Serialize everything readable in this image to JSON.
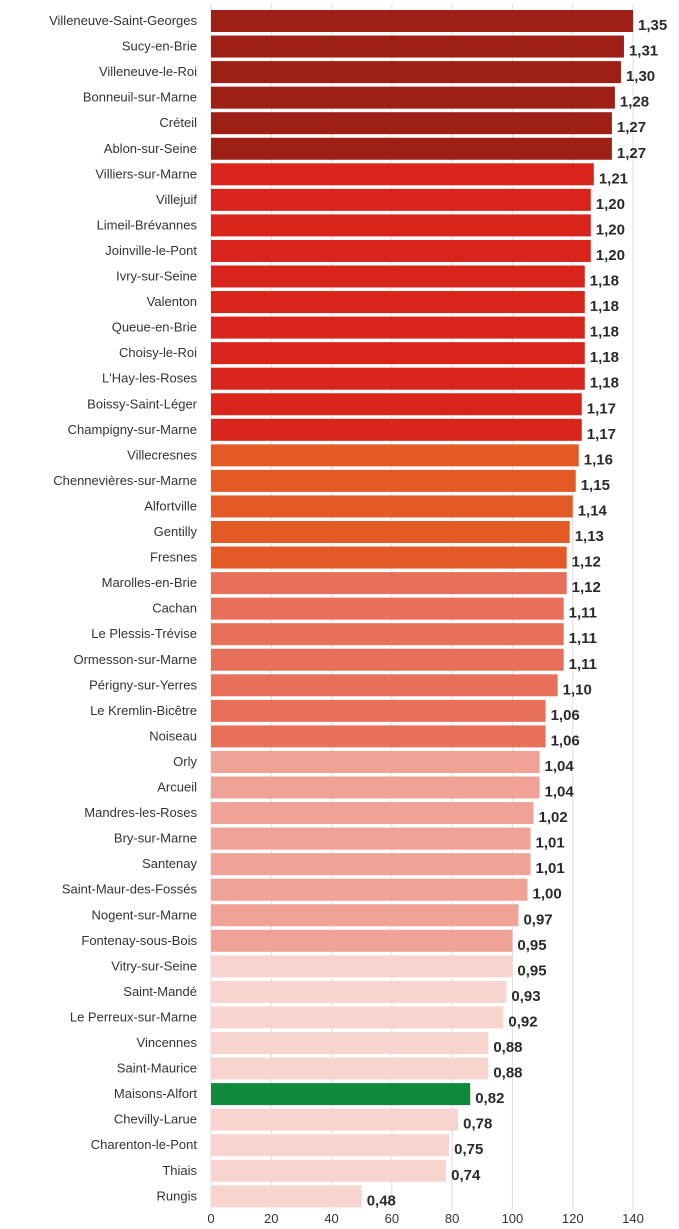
{
  "chart_data": {
    "type": "bar",
    "orientation": "horizontal",
    "categories": [
      "Villeneuve-Saint-Georges",
      "Sucy-en-Brie",
      "Villeneuve-le-Roi",
      "Bonneuil-sur-Marne",
      "Créteil",
      "Ablon-sur-Seine",
      "Villiers-sur-Marne",
      "Villejuif",
      "Limeil-Brévannes",
      "Joinville-le-Pont",
      "Ivry-sur-Seine",
      "Valenton",
      "Queue-en-Brie",
      "Choisy-le-Roi",
      "L'Hay-les-Roses",
      "Boissy-Saint-Léger",
      "Champigny-sur-Marne",
      "Villecresnes",
      "Chennevières-sur-Marne",
      "Alfortville",
      "Gentilly",
      "Fresnes",
      "Marolles-en-Brie",
      "Cachan",
      "Le Plessis-Trévise",
      "Ormesson-sur-Marne",
      "Périgny-sur-Yerres",
      "Le Kremlin-Bicêtre",
      "Noiseau",
      "Orly",
      "Arcueil",
      "Mandres-les-Roses",
      "Bry-sur-Marne",
      "Santenay",
      "Saint-Maur-des-Fossés",
      "Nogent-sur-Marne",
      "Fontenay-sous-Bois",
      "Vitry-sur-Seine",
      "Saint-Mandé",
      "Le Perreux-sur-Marne",
      "Vincennes",
      "Saint-Maurice",
      "Maisons-Alfort",
      "Chevilly-Larue",
      "Charenton-le-Pont",
      "Thiais",
      "Rungis"
    ],
    "values": [
      1.35,
      1.31,
      1.3,
      1.28,
      1.27,
      1.27,
      1.21,
      1.2,
      1.2,
      1.2,
      1.18,
      1.18,
      1.18,
      1.18,
      1.18,
      1.17,
      1.17,
      1.16,
      1.15,
      1.14,
      1.13,
      1.12,
      1.12,
      1.11,
      1.11,
      1.11,
      1.1,
      1.06,
      1.06,
      1.04,
      1.04,
      1.02,
      1.01,
      1.01,
      1.0,
      0.97,
      0.95,
      0.95,
      0.93,
      0.92,
      0.88,
      0.88,
      0.82,
      0.78,
      0.75,
      0.74,
      0.48
    ],
    "value_labels": [
      "1,35",
      "1,31",
      "1,30",
      "1,28",
      "1,27",
      "1,27",
      "1,21",
      "1,20",
      "1,20",
      "1,20",
      "1,18",
      "1,18",
      "1,18",
      "1,18",
      "1,18",
      "1,17",
      "1,17",
      "1,16",
      "1,15",
      "1,14",
      "1,13",
      "1,12",
      "1,12",
      "1,11",
      "1,11",
      "1,11",
      "1,10",
      "1,06",
      "1,06",
      "1,04",
      "1,04",
      "1,02",
      "1,01",
      "1,01",
      "1,00",
      "0,97",
      "0,95",
      "0,95",
      "0,93",
      "0,92",
      "0,88",
      "0,88",
      "0,82",
      "0,78",
      "0,75",
      "0,74",
      "0,48"
    ],
    "bar_lengths": [
      140,
      137,
      136,
      134,
      133,
      133,
      127,
      126,
      126,
      126,
      124,
      124,
      124,
      124,
      124,
      123,
      123,
      122,
      121,
      120,
      119,
      118,
      118,
      117,
      117,
      117,
      115,
      111,
      111,
      109,
      109,
      107,
      106,
      106,
      105,
      102,
      100,
      100,
      98,
      97,
      92,
      92,
      86,
      82,
      79,
      78,
      50
    ],
    "x_ticks": [
      "0",
      "20",
      "40",
      "60",
      "80",
      "100",
      "120",
      "140"
    ],
    "x_tick_values": [
      0,
      20,
      40,
      60,
      80,
      100,
      120,
      140
    ],
    "xlim": [
      0,
      140
    ],
    "title": "",
    "xlabel": "",
    "ylabel": "",
    "grid": "vertical",
    "legend": "none",
    "colors": [
      "#9e1f16",
      "#9e1f16",
      "#9e1f16",
      "#9e1f16",
      "#9e1f16",
      "#9e1f16",
      "#d8241a",
      "#d8241a",
      "#d8241a",
      "#d8241a",
      "#d8241a",
      "#d8241a",
      "#d8241a",
      "#d8241a",
      "#d8241a",
      "#d8241a",
      "#d8241a",
      "#e45a26",
      "#e45a26",
      "#e45a26",
      "#e45a26",
      "#e45a26",
      "#e8705a",
      "#e8705a",
      "#e8705a",
      "#e8705a",
      "#e8705a",
      "#e8705a",
      "#e8705a",
      "#f0a296",
      "#f0a296",
      "#f0a296",
      "#f0a296",
      "#f0a296",
      "#f0a296",
      "#f0a296",
      "#f0a296",
      "#f8d4cf",
      "#f8d4cf",
      "#f8d4cf",
      "#f8d4cf",
      "#f8d4cf",
      "#0f8a3c",
      "#f8d4cf",
      "#f8d4cf",
      "#f8d4cf",
      "#f8d4cf"
    ],
    "grid_color": "#dddddd"
  }
}
